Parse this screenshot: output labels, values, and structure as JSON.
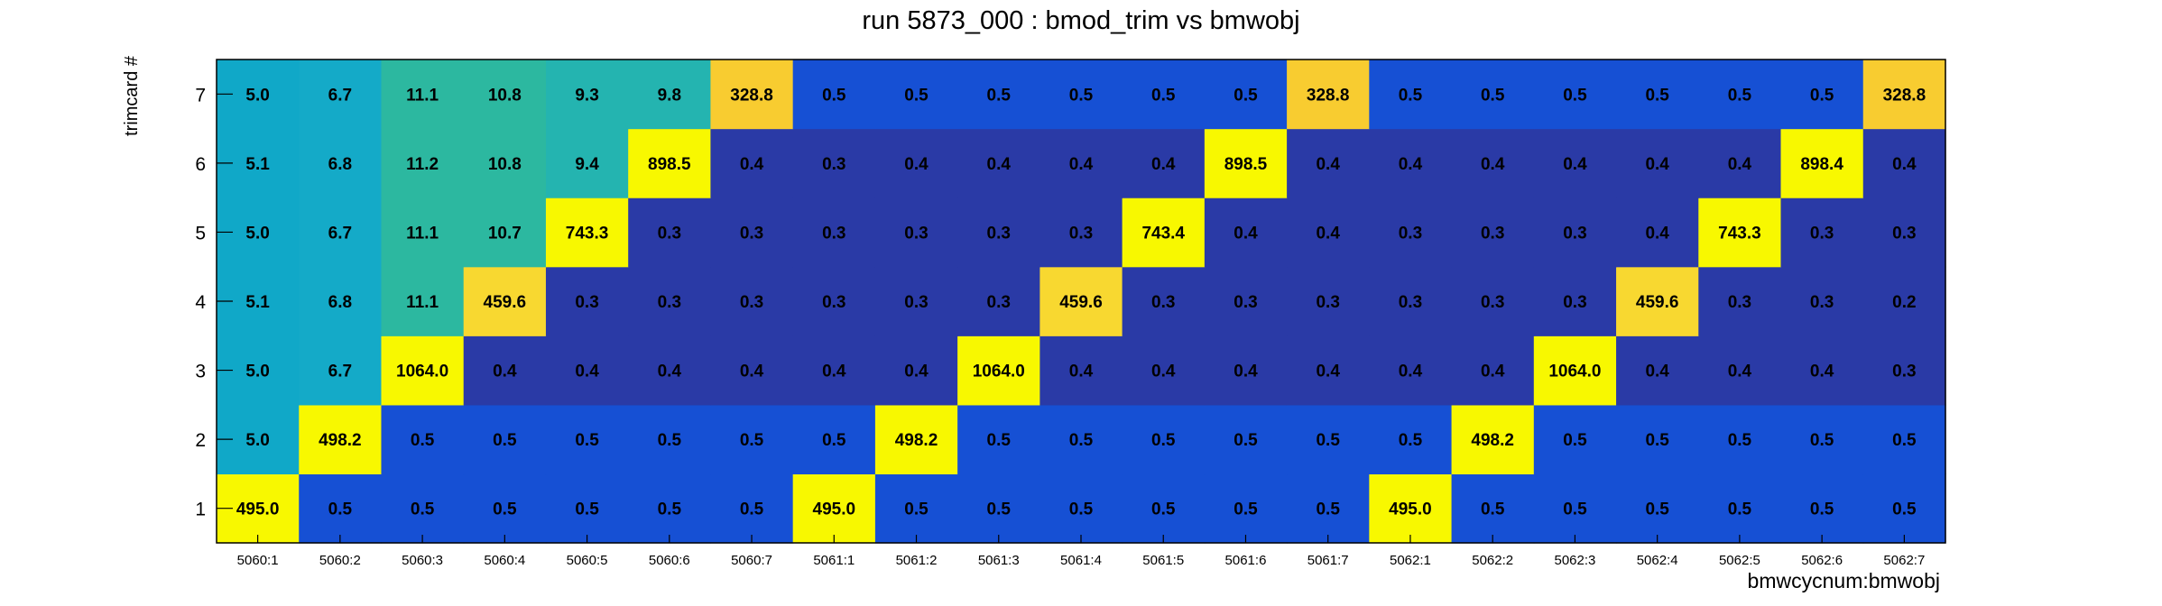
{
  "chart_data": {
    "type": "heatmap",
    "title": "run 5873_000 : bmod_trim vs bmwobj",
    "xlabel": "bmwcycnum:bmwobj",
    "ylabel": "trimcard #",
    "x_categories": [
      "5060:1",
      "5060:2",
      "5060:3",
      "5060:4",
      "5060:5",
      "5060:6",
      "5060:7",
      "5061:1",
      "5061:2",
      "5061:3",
      "5061:4",
      "5061:5",
      "5061:6",
      "5061:7",
      "5062:1",
      "5062:2",
      "5062:3",
      "5062:4",
      "5062:5",
      "5062:6",
      "5062:7"
    ],
    "y_categories": [
      "1",
      "2",
      "3",
      "4",
      "5",
      "6",
      "7"
    ],
    "values": [
      [
        "495.0",
        "0.5",
        "0.5",
        "0.5",
        "0.5",
        "0.5",
        "0.5",
        "495.0",
        "0.5",
        "0.5",
        "0.5",
        "0.5",
        "0.5",
        "0.5",
        "495.0",
        "0.5",
        "0.5",
        "0.5",
        "0.5",
        "0.5",
        "0.5"
      ],
      [
        "5.0",
        "498.2",
        "0.5",
        "0.5",
        "0.5",
        "0.5",
        "0.5",
        "0.5",
        "498.2",
        "0.5",
        "0.5",
        "0.5",
        "0.5",
        "0.5",
        "0.5",
        "498.2",
        "0.5",
        "0.5",
        "0.5",
        "0.5",
        "0.5"
      ],
      [
        "5.0",
        "6.7",
        "1064.0",
        "0.4",
        "0.4",
        "0.4",
        "0.4",
        "0.4",
        "0.4",
        "1064.0",
        "0.4",
        "0.4",
        "0.4",
        "0.4",
        "0.4",
        "0.4",
        "1064.0",
        "0.4",
        "0.4",
        "0.4",
        "0.3"
      ],
      [
        "5.1",
        "6.8",
        "11.1",
        "459.6",
        "0.3",
        "0.3",
        "0.3",
        "0.3",
        "0.3",
        "0.3",
        "459.6",
        "0.3",
        "0.3",
        "0.3",
        "0.3",
        "0.3",
        "0.3",
        "459.6",
        "0.3",
        "0.3",
        "0.2"
      ],
      [
        "5.0",
        "6.7",
        "11.1",
        "10.7",
        "743.3",
        "0.3",
        "0.3",
        "0.3",
        "0.3",
        "0.3",
        "0.3",
        "743.4",
        "0.4",
        "0.4",
        "0.3",
        "0.3",
        "0.3",
        "0.4",
        "743.3",
        "0.3",
        "0.3"
      ],
      [
        "5.1",
        "6.8",
        "11.2",
        "10.8",
        "9.4",
        "898.5",
        "0.4",
        "0.3",
        "0.4",
        "0.4",
        "0.4",
        "0.4",
        "898.5",
        "0.4",
        "0.4",
        "0.4",
        "0.4",
        "0.4",
        "0.4",
        "898.4",
        "0.4"
      ],
      [
        "5.0",
        "6.7",
        "11.1",
        "10.8",
        "9.3",
        "9.8",
        "328.8",
        "0.5",
        "0.5",
        "0.5",
        "0.5",
        "0.5",
        "0.5",
        "328.8",
        "0.5",
        "0.5",
        "0.5",
        "0.5",
        "0.5",
        "0.5",
        "328.8"
      ]
    ],
    "palette": {
      "very_low": "#2a3aa6",
      "low": "#1650d4",
      "mid_5": "#10a8c8",
      "mid_6": "#14aac8",
      "mid_9": "#24b4b0",
      "mid_11": "#2cb8a0",
      "high_328": "#f8cc30",
      "high_459": "#f8d830",
      "peak": "#f8f800"
    },
    "grid": false,
    "legend": "none"
  }
}
